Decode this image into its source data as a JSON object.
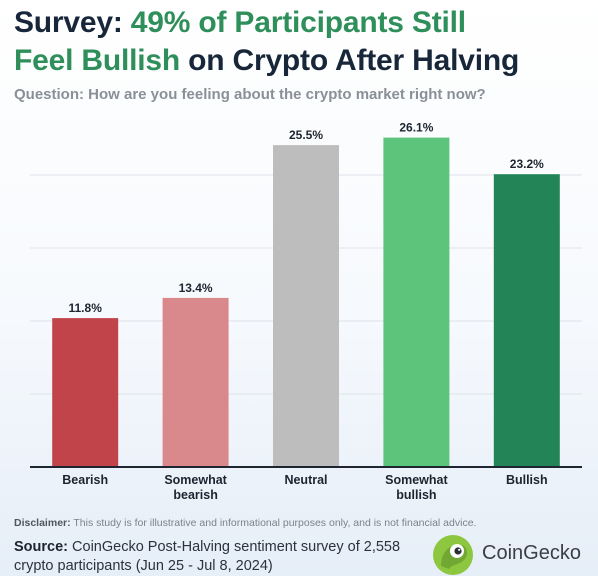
{
  "header": {
    "title_prefix": "Survey:",
    "title_highlight_1": "49% of Participants Still",
    "title_highlight_2": "Feel Bullish",
    "title_suffix": "on Crypto After Halving",
    "question": "Question: How are you feeling about the crypto market right now?"
  },
  "chart_data": {
    "type": "bar",
    "title": "",
    "xlabel": "",
    "ylabel": "",
    "categories": [
      "Bearish",
      "Somewhat bearish",
      "Neutral",
      "Somewhat bullish",
      "Bullish"
    ],
    "category_lines": [
      [
        "Bearish"
      ],
      [
        "Somewhat",
        "bearish"
      ],
      [
        "Neutral"
      ],
      [
        "Somewhat",
        "bullish"
      ],
      [
        "Bullish"
      ]
    ],
    "values": [
      11.8,
      13.4,
      25.5,
      26.1,
      23.2
    ],
    "value_labels": [
      "11.8%",
      "13.4%",
      "25.5%",
      "26.1%",
      "23.2%"
    ],
    "colors": [
      "#c0444a",
      "#d9888c",
      "#bdbdbd",
      "#5cc47b",
      "#238458"
    ],
    "ylim": [
      0,
      26.7
    ],
    "grid": true
  },
  "footer": {
    "disclaimer_label": "Disclaimer:",
    "disclaimer_text": "This study is for illustrative and informational purposes only, and is not financial advice.",
    "source_label": "Source:",
    "source_text": "CoinGecko Post-Halving sentiment survey of 2,558 crypto participants (Jun 25 - Jul 8, 2024)",
    "brand_name": "CoinGecko",
    "brand_icon": "gecko-logo-icon"
  }
}
